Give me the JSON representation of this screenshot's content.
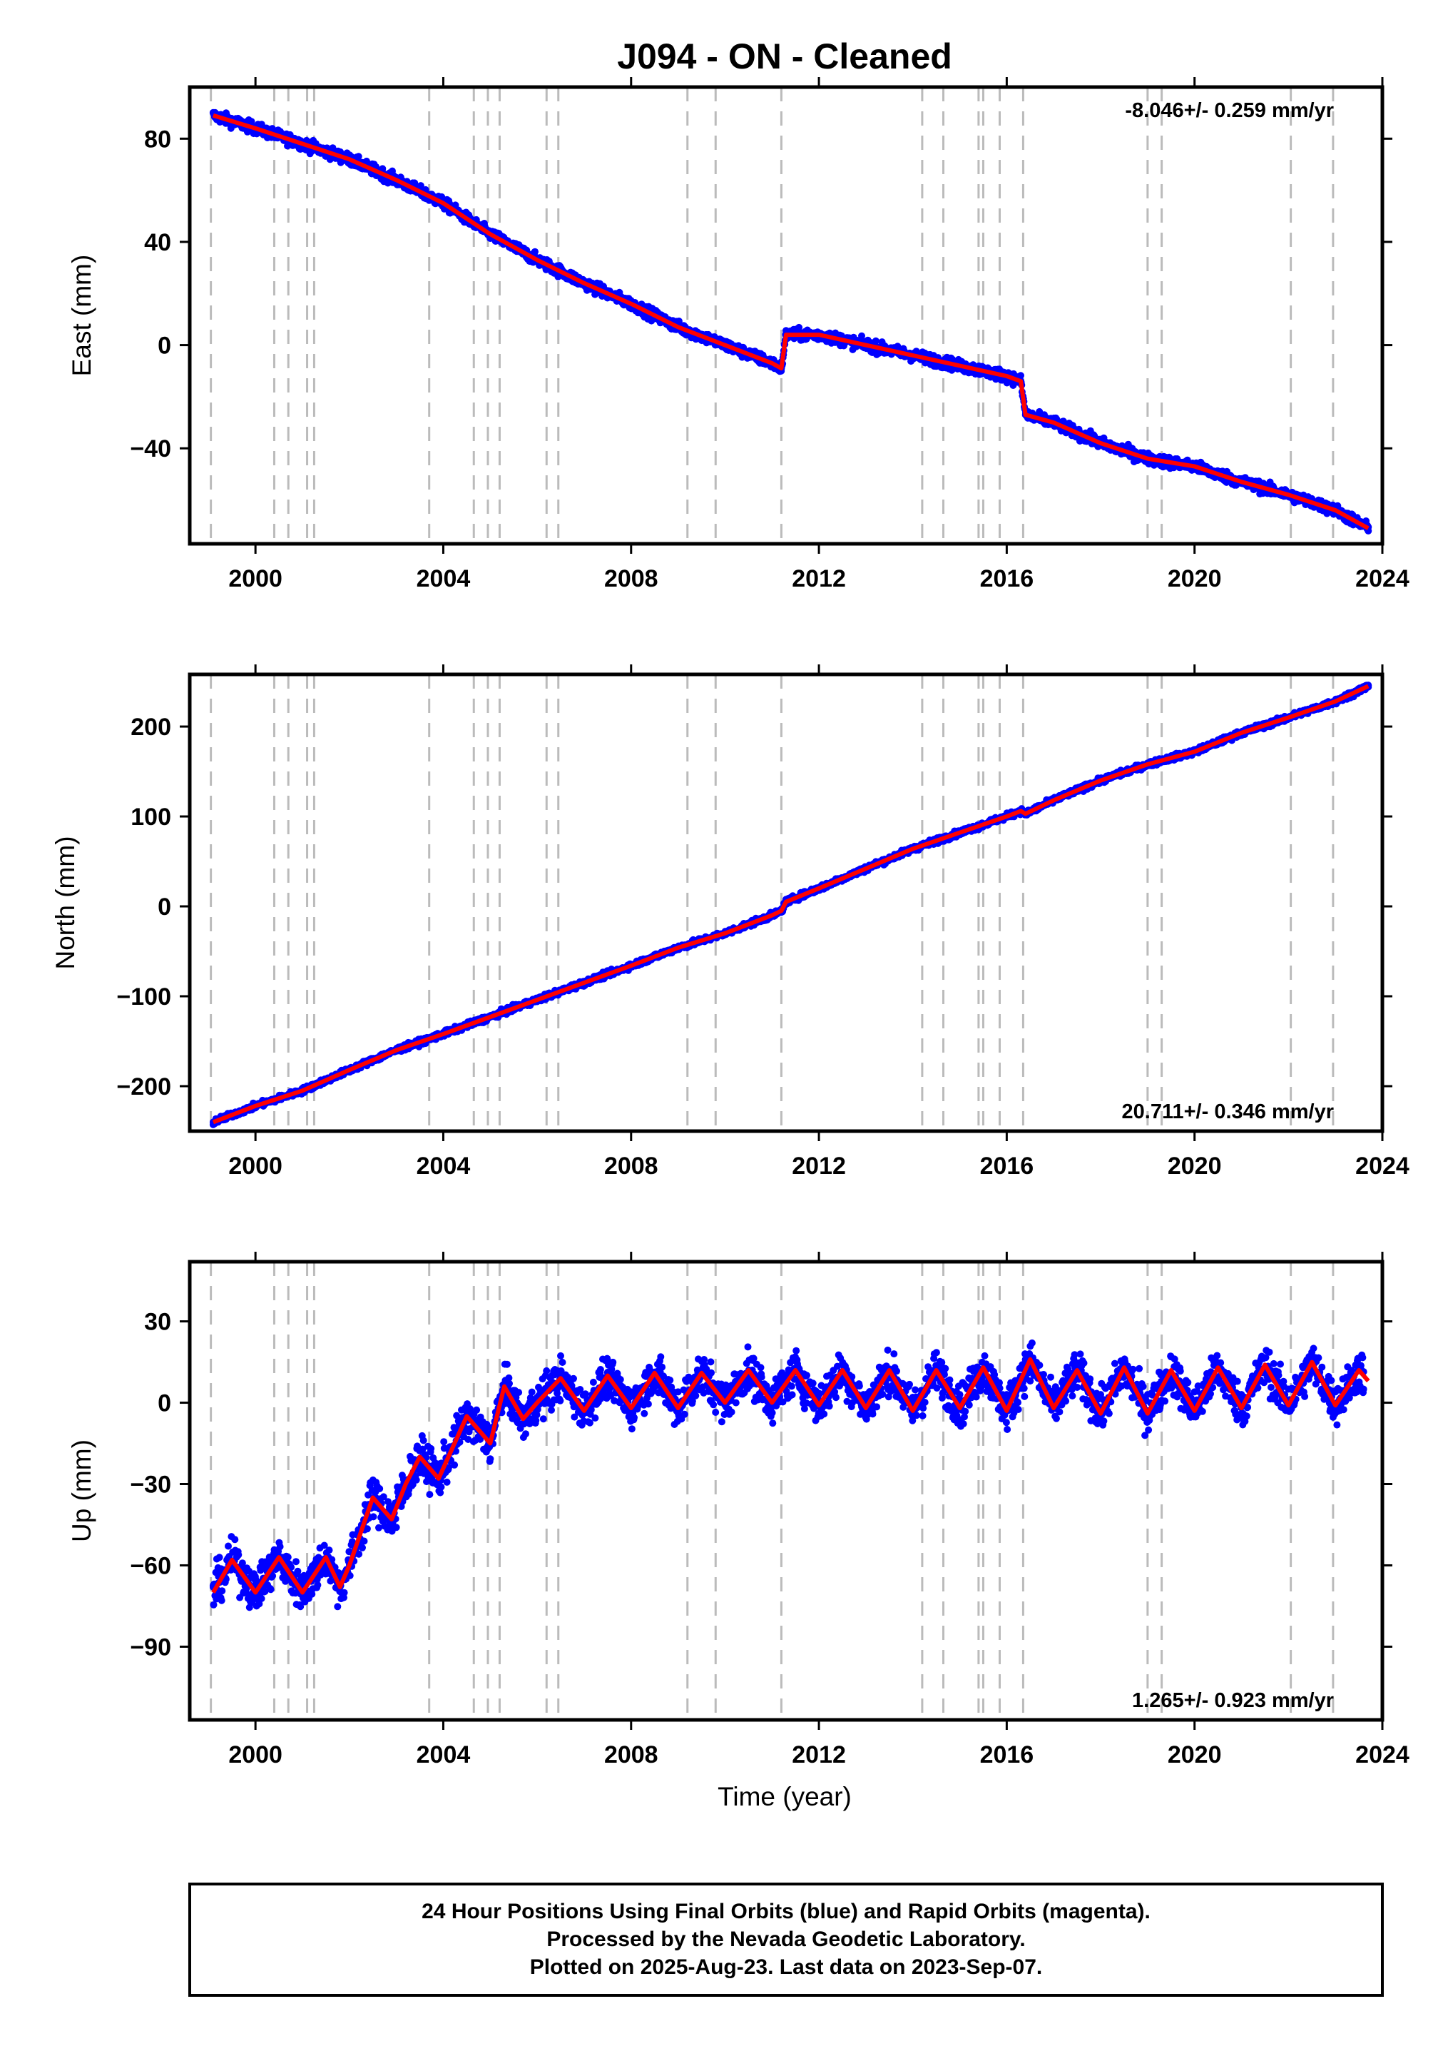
{
  "title": "J094  - ON - Cleaned",
  "xlabel": "Time (year)",
  "footer": {
    "lines": [
      "24 Hour Positions Using Final Orbits (blue) and Rapid Orbits (magenta).",
      "Processed by the Nevada Geodetic Laboratory.",
      "Plotted on 2025-Aug-23. Last data on 2023-Sep-07."
    ]
  },
  "colors": {
    "points": "#0000ff",
    "model": "#ff0000",
    "events": "#bbbbbb",
    "frame": "#000000"
  },
  "chart_data": [
    {
      "type": "scatter",
      "panel": "east",
      "ylabel": "East (mm)",
      "rate": "-8.046+/- 0.259 mm/yr",
      "rate_placement": "top-right",
      "xlim": [
        1998.6,
        2024.0
      ],
      "ylim": [
        -77,
        100
      ],
      "xticks": [
        2000,
        2004,
        2008,
        2012,
        2016,
        2020,
        2024
      ],
      "xticklabels": [
        "2000",
        "2004",
        "2008",
        "2012",
        "2016",
        "2020",
        "2024"
      ],
      "yticks": [
        80,
        40,
        0,
        -40
      ],
      "yticklabels": [
        "80",
        "40",
        "0",
        "−40"
      ],
      "series": [
        {
          "kind": "points",
          "x": [
            1999.1,
            2000.0,
            2001.0,
            2002.0,
            2003.0,
            2004.0,
            2005.0,
            2006.0,
            2007.0,
            2008.0,
            2009.0,
            2010.0,
            2011.0,
            2011.2,
            2011.3,
            2012.0,
            2013.0,
            2014.0,
            2015.0,
            2016.0,
            2016.3,
            2016.4,
            2017.0,
            2018.0,
            2019.0,
            2020.0,
            2021.0,
            2022.0,
            2023.0,
            2023.7
          ],
          "y": [
            90,
            83,
            78,
            72,
            64,
            55,
            43,
            33,
            24,
            16,
            7,
            0,
            -7,
            -9,
            4,
            4,
            0,
            -4,
            -8,
            -12,
            -14,
            -27,
            -30,
            -38,
            -44,
            -47,
            -53,
            -58,
            -64,
            -72
          ]
        },
        {
          "kind": "line",
          "x": [
            1999.1,
            2000.0,
            2001.0,
            2002.0,
            2003.0,
            2004.0,
            2005.0,
            2006.0,
            2007.0,
            2008.0,
            2009.0,
            2010.0,
            2011.0,
            2011.2,
            2011.3,
            2012.0,
            2013.0,
            2014.0,
            2015.0,
            2016.0,
            2016.3,
            2016.4,
            2017.0,
            2018.0,
            2019.0,
            2020.0,
            2021.0,
            2022.0,
            2023.0,
            2023.7
          ],
          "y": [
            89,
            84,
            78,
            72,
            64,
            55,
            43,
            33,
            24,
            16,
            7,
            0,
            -7,
            -9,
            4,
            4,
            0,
            -4,
            -8,
            -12,
            -14,
            -27,
            -30,
            -38,
            -44,
            -47,
            -53,
            -58,
            -64,
            -71
          ]
        }
      ]
    },
    {
      "type": "scatter",
      "panel": "north",
      "ylabel": "North (mm)",
      "rate": "20.711+/- 0.346 mm/yr",
      "rate_placement": "bottom-right",
      "xlim": [
        1998.6,
        2024.0
      ],
      "ylim": [
        -250,
        258
      ],
      "xticks": [
        2000,
        2004,
        2008,
        2012,
        2016,
        2020,
        2024
      ],
      "xticklabels": [
        "2000",
        "2004",
        "2008",
        "2012",
        "2016",
        "2020",
        "2024"
      ],
      "yticks": [
        200,
        100,
        0,
        -100,
        -200
      ],
      "yticklabels": [
        "200",
        "100",
        "0",
        "−100",
        "−200"
      ],
      "series": [
        {
          "kind": "points",
          "x": [
            1999.1,
            2000.0,
            2001.0,
            2002.0,
            2003.0,
            2004.0,
            2005.0,
            2006.0,
            2007.0,
            2008.0,
            2009.0,
            2010.0,
            2011.0,
            2011.2,
            2011.3,
            2012.0,
            2013.0,
            2014.0,
            2015.0,
            2016.0,
            2016.3,
            2016.4,
            2017.0,
            2018.0,
            2019.0,
            2020.0,
            2021.0,
            2022.0,
            2023.0,
            2023.7
          ],
          "y": [
            -240,
            -222,
            -205,
            -182,
            -160,
            -142,
            -123,
            -104,
            -85,
            -66,
            -46,
            -30,
            -10,
            -5,
            5,
            20,
            42,
            64,
            82,
            100,
            106,
            103,
            118,
            140,
            158,
            172,
            193,
            210,
            228,
            246
          ]
        },
        {
          "kind": "line",
          "x": [
            1999.1,
            2000.0,
            2001.0,
            2002.0,
            2003.0,
            2004.0,
            2005.0,
            2006.0,
            2007.0,
            2008.0,
            2009.0,
            2010.0,
            2011.0,
            2011.2,
            2011.3,
            2012.0,
            2013.0,
            2014.0,
            2015.0,
            2016.0,
            2016.3,
            2016.4,
            2017.0,
            2018.0,
            2019.0,
            2020.0,
            2021.0,
            2022.0,
            2023.0,
            2023.7
          ],
          "y": [
            -240,
            -222,
            -205,
            -182,
            -160,
            -142,
            -123,
            -104,
            -85,
            -66,
            -46,
            -30,
            -10,
            -5,
            5,
            20,
            42,
            64,
            82,
            100,
            106,
            103,
            118,
            140,
            158,
            172,
            193,
            210,
            228,
            245
          ]
        }
      ]
    },
    {
      "type": "scatter",
      "panel": "up",
      "ylabel": "Up (mm)",
      "rate": "1.265+/- 0.923 mm/yr",
      "rate_placement": "bottom-right",
      "xlim": [
        1998.6,
        2024.0
      ],
      "ylim": [
        -117,
        52
      ],
      "xticks": [
        2000,
        2004,
        2008,
        2012,
        2016,
        2020,
        2024
      ],
      "xticklabels": [
        "2000",
        "2004",
        "2008",
        "2012",
        "2016",
        "2020",
        "2024"
      ],
      "yticks": [
        30,
        0,
        -30,
        -60,
        -90
      ],
      "yticklabels": [
        "30",
        "0",
        "−30",
        "−60",
        "−90"
      ],
      "series": [
        {
          "kind": "points",
          "x": [
            1999.1,
            2000.0,
            2001.0,
            2001.8,
            2002.0,
            2002.5,
            2003.0,
            2003.2,
            2004.0,
            2005.0,
            2005.3,
            2006.0,
            2007.0,
            2008.0,
            2009.0,
            2010.0,
            2011.0,
            2012.0,
            2013.0,
            2014.0,
            2015.0,
            2016.0,
            2016.5,
            2017.0,
            2018.0,
            2019.0,
            2020.0,
            2021.0,
            2022.0,
            2023.0,
            2023.6
          ],
          "y": [
            -68,
            -65,
            -66,
            -68,
            -58,
            -38,
            -46,
            -32,
            -25,
            -13,
            2,
            2,
            3,
            4,
            4,
            3,
            3,
            3,
            2,
            2,
            3,
            3,
            8,
            2,
            3,
            3,
            4,
            3,
            5,
            4,
            5
          ]
        },
        {
          "kind": "line",
          "x": [
            1999.1,
            1999.5,
            2000.0,
            2000.5,
            2001.0,
            2001.5,
            2001.8,
            2002.0,
            2002.5,
            2002.9,
            2003.2,
            2003.5,
            2003.9,
            2004.5,
            2005.0,
            2005.3,
            2005.7,
            2006.0,
            2006.5,
            2007.0,
            2007.5,
            2008.0,
            2008.5,
            2009.0,
            2009.5,
            2010.0,
            2010.5,
            2011.0,
            2011.5,
            2012.0,
            2012.5,
            2013.0,
            2013.5,
            2014.0,
            2014.5,
            2015.0,
            2015.5,
            2016.0,
            2016.5,
            2017.0,
            2017.5,
            2018.0,
            2018.5,
            2019.0,
            2019.5,
            2020.0,
            2020.5,
            2021.0,
            2021.5,
            2022.0,
            2022.5,
            2023.0,
            2023.5,
            2023.7
          ],
          "y": [
            -70,
            -58,
            -70,
            -57,
            -70,
            -57,
            -68,
            -60,
            -35,
            -43,
            -30,
            -20,
            -28,
            -5,
            -15,
            6,
            -6,
            0,
            9,
            -3,
            10,
            -2,
            11,
            -2,
            11,
            0,
            12,
            0,
            12,
            -1,
            12,
            -2,
            12,
            -3,
            12,
            -2,
            13,
            -3,
            16,
            -2,
            12,
            -4,
            13,
            -4,
            12,
            -3,
            13,
            -2,
            14,
            -1,
            15,
            -1,
            12,
            8
          ]
        }
      ]
    }
  ],
  "event_lines_x": [
    1999.05,
    2000.4,
    2000.7,
    2001.1,
    2001.25,
    2003.7,
    2004.65,
    2004.95,
    2005.2,
    2006.2,
    2006.45,
    2009.2,
    2009.8,
    2011.2,
    2014.2,
    2014.65,
    2015.4,
    2015.5,
    2015.85,
    2016.35,
    2019.0,
    2019.3,
    2022.05,
    2022.95
  ]
}
